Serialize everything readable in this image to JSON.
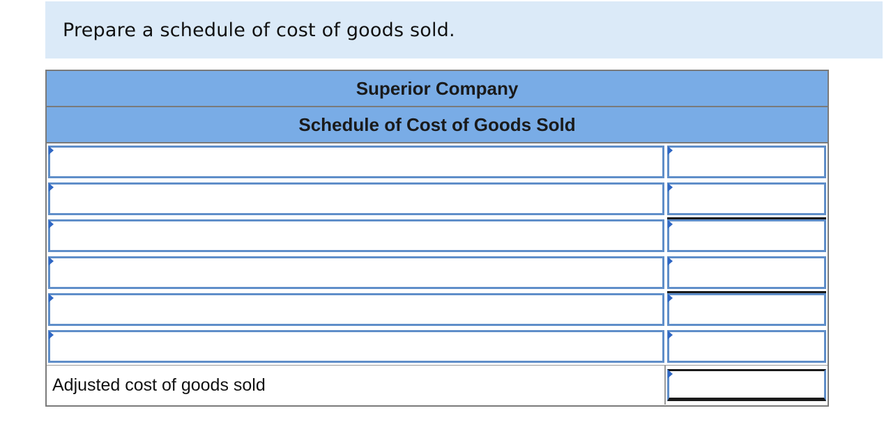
{
  "instruction": {
    "text": "Prepare a schedule of cost of goods sold."
  },
  "schedule": {
    "company_name": "Superior Company",
    "schedule_title": "Schedule of Cost of Goods Sold",
    "rows": [
      {
        "label_value": "",
        "amount_value": ""
      },
      {
        "label_value": "",
        "amount_value": ""
      },
      {
        "label_value": "",
        "amount_value": ""
      },
      {
        "label_value": "",
        "amount_value": ""
      },
      {
        "label_value": "",
        "amount_value": ""
      },
      {
        "label_value": "",
        "amount_value": ""
      }
    ],
    "total_row": {
      "label": "Adjusted cost of goods sold",
      "amount_value": ""
    }
  },
  "colors": {
    "instruction_bg": "#dbeaf8",
    "header_bg": "#79ace6",
    "input_border": "#5f8ec9",
    "dropdown_marker": "#2f67c4"
  },
  "icons": {
    "dropdown_marker": "dropdown-marker-icon"
  }
}
